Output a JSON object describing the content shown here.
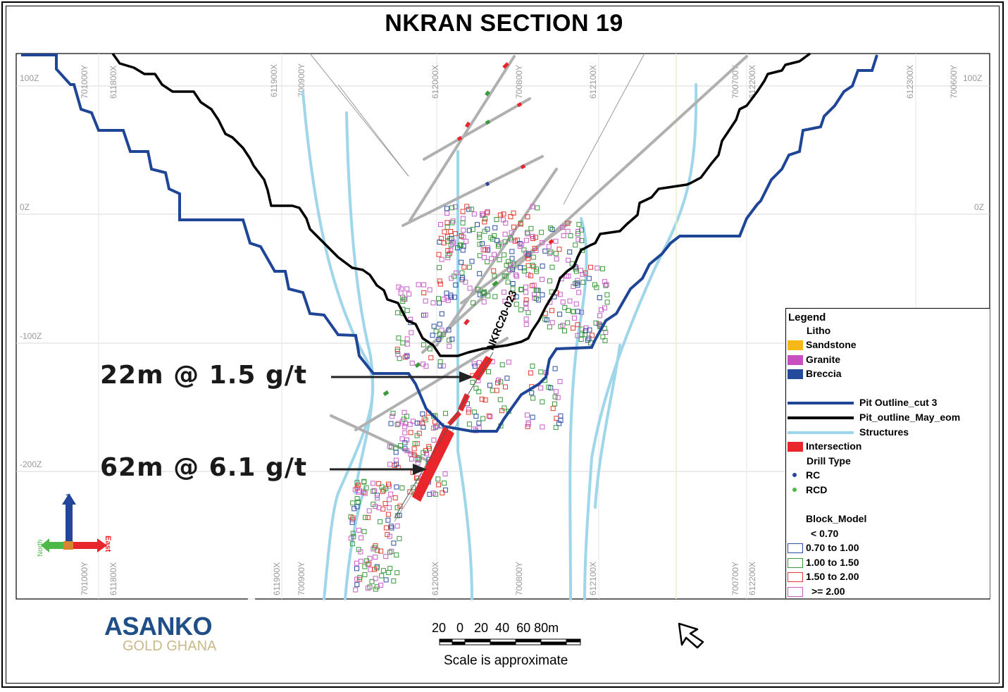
{
  "title": "NKRAN SECTION 19",
  "elevation_labels": [
    "100Z",
    "0Z",
    "-100Z",
    "-200Z"
  ],
  "grid_labels": [
    "701000Y",
    "611800X",
    "611900X",
    "700900Y",
    "612000X",
    "700800Y",
    "612100X",
    "700700Y",
    "612200X",
    "612300X",
    "700600Y"
  ],
  "drillhole_label": "NKRC20-023",
  "annotations": {
    "upper": "22m @ 1.5 g/t",
    "lower": "62m @ 6.1 g/t"
  },
  "axis_triad": {
    "z": "Z",
    "north": "North",
    "east": "East"
  },
  "legend": {
    "title": "Legend",
    "litho_heading": "Litho",
    "litho": [
      {
        "label": "Sandstone",
        "color": "#f6b817"
      },
      {
        "label": "Granite",
        "color": "#c74fbf"
      },
      {
        "label": "Breccia",
        "color": "#244a9c"
      }
    ],
    "lines": [
      {
        "label": "Pit Outline_cut 3",
        "color": "#1f4597"
      },
      {
        "label": "Pit_outline_May_eom",
        "color": "#000000"
      },
      {
        "label": "Structures",
        "color": "#9fd6ea"
      }
    ],
    "intersection": {
      "label": "Intersection",
      "color": "#e8262b"
    },
    "drill_type_heading": "Drill Type",
    "drill_types": [
      {
        "label": "RC",
        "color": "#24469a"
      },
      {
        "label": "RCD",
        "color": "#4cb848"
      }
    ],
    "block_model_heading": "Block_Model",
    "block_model": [
      {
        "label": "< 0.70",
        "color": ""
      },
      {
        "label": "0.70 to 1.00",
        "color": "#2c4fa0"
      },
      {
        "label": "1.00 to 1.50",
        "color": "#3a9a3c"
      },
      {
        "label": "1.50 to 2.00",
        "color": "#e53a30"
      },
      {
        "label": ">= 2.00",
        "color": "#c85cc8"
      }
    ]
  },
  "logo": {
    "name": "ASANKO",
    "subtitle": "GOLD GHANA"
  },
  "scale": {
    "ticks": "20   0   20  40  60 80m",
    "note": "Scale is approximate"
  },
  "colors": {
    "pit_cut3": "#1f4597",
    "pit_may": "#000000",
    "structures": "#9fd6ea",
    "intersection": "#e8262b"
  }
}
